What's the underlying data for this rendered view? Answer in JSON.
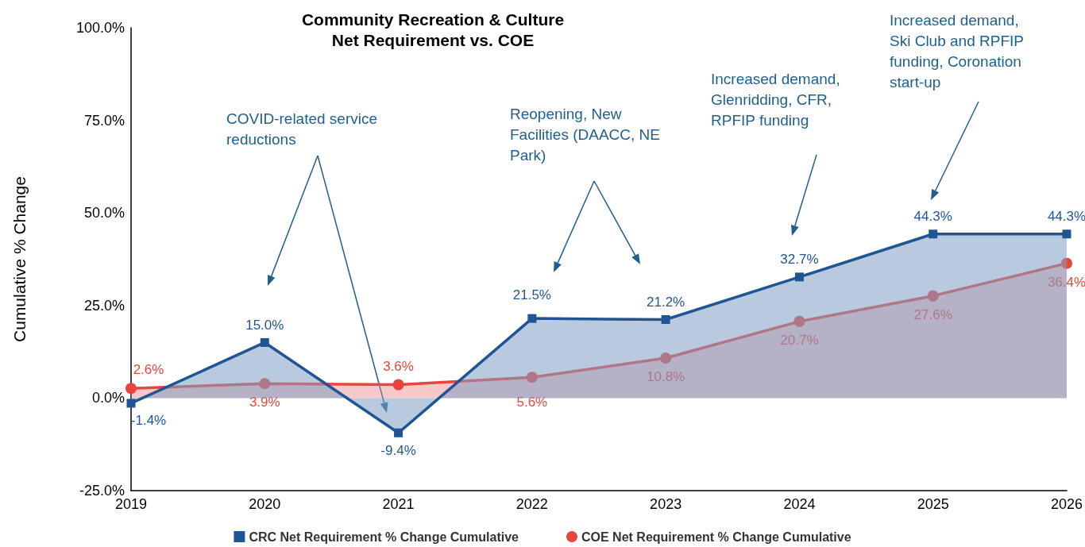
{
  "chart_data": {
    "type": "area",
    "title": "Community Recreation & Culture\nNet Requirement vs. COE",
    "ylabel": "Cumulative % Change",
    "categories": [
      "2019",
      "2020",
      "2021",
      "2022",
      "2023",
      "2024",
      "2025",
      "2026"
    ],
    "series": [
      {
        "name": "CRC Net Requirement % Change Cumulative",
        "color": "#1f5594",
        "marker": "square",
        "values": [
          -1.4,
          15.0,
          -9.4,
          21.5,
          21.2,
          32.7,
          44.3,
          44.3
        ],
        "value_labels": [
          "-1.4%",
          "15.0%",
          "-9.4%",
          "21.5%",
          "21.2%",
          "32.7%",
          "44.3%",
          "44.3%"
        ]
      },
      {
        "name": "COE Net Requirement % Change Cumulative",
        "color": "#e8453c",
        "marker": "circle",
        "values": [
          2.6,
          3.9,
          3.6,
          5.6,
          10.8,
          20.7,
          27.6,
          36.4
        ],
        "value_labels": [
          "2.6%",
          "3.9%",
          "3.6%",
          "5.6%",
          "10.8%",
          "20.7%",
          "27.6%",
          "36.4%"
        ]
      }
    ],
    "ylim": [
      -25,
      100
    ],
    "yticks": [
      {
        "value": -25,
        "label": "-25.0%"
      },
      {
        "value": 0,
        "label": "0.0%"
      },
      {
        "value": 25,
        "label": "25.0%"
      },
      {
        "value": 50,
        "label": "50.0%"
      },
      {
        "value": 75,
        "label": "75.0%"
      },
      {
        "value": 100,
        "label": "100.0%"
      }
    ],
    "grid": false,
    "legend": "bottom",
    "annotations": [
      "COVID-related service\nreductions",
      "Reopening, New\nFacilities (DAACC, NE\nPark)",
      "Increased demand,\nGlenridding, CFR,\nRPFIP funding",
      "Increased demand,\nSki Club and RPFIP\nfunding, Coronation\nstart-up"
    ]
  }
}
